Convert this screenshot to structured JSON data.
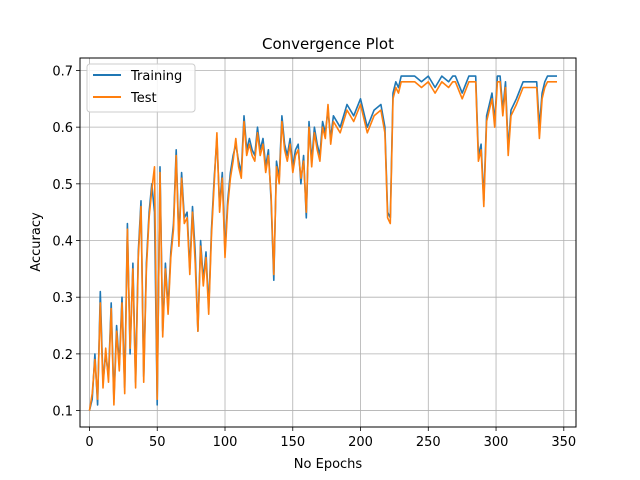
{
  "chart_data": {
    "type": "line",
    "title": "Convergence Plot",
    "xlabel": "No Epochs",
    "ylabel": "Accuracy",
    "xlim": [
      -7,
      359
    ],
    "ylim": [
      0.071,
      0.722
    ],
    "xticks": [
      0,
      50,
      100,
      150,
      200,
      250,
      300,
      350
    ],
    "yticks": [
      0.1,
      0.2,
      0.3,
      0.4,
      0.5,
      0.6,
      0.7
    ],
    "ytick_labels": [
      "0.1",
      "0.2",
      "0.3",
      "0.4",
      "0.5",
      "0.6",
      "0.7"
    ],
    "grid": true,
    "legend_position": "top-left",
    "series": [
      {
        "name": "Training",
        "color": "#1f77b4",
        "x": [
          0,
          2,
          4,
          6,
          8,
          10,
          12,
          14,
          16,
          18,
          20,
          22,
          24,
          26,
          28,
          30,
          32,
          34,
          36,
          38,
          40,
          42,
          44,
          46,
          48,
          50,
          52,
          54,
          56,
          58,
          60,
          62,
          64,
          66,
          68,
          70,
          72,
          74,
          76,
          78,
          80,
          82,
          84,
          86,
          88,
          90,
          92,
          94,
          96,
          98,
          100,
          102,
          104,
          106,
          108,
          110,
          112,
          114,
          116,
          118,
          120,
          122,
          124,
          126,
          128,
          130,
          132,
          134,
          136,
          138,
          140,
          142,
          144,
          146,
          148,
          150,
          152,
          154,
          156,
          158,
          160,
          162,
          164,
          166,
          168,
          170,
          172,
          174,
          176,
          178,
          180,
          185,
          190,
          195,
          200,
          205,
          210,
          215,
          218,
          220,
          222,
          224,
          226,
          228,
          230,
          235,
          240,
          245,
          250,
          255,
          260,
          265,
          268,
          270,
          275,
          280,
          285,
          287,
          289,
          291,
          293,
          295,
          297,
          299,
          301,
          303,
          305,
          307,
          309,
          311,
          315,
          320,
          325,
          330,
          332,
          334,
          336,
          338,
          340,
          345
        ],
        "values": [
          0.1,
          0.12,
          0.2,
          0.11,
          0.31,
          0.15,
          0.2,
          0.16,
          0.29,
          0.12,
          0.25,
          0.18,
          0.3,
          0.14,
          0.43,
          0.2,
          0.36,
          0.15,
          0.38,
          0.47,
          0.16,
          0.36,
          0.45,
          0.5,
          0.45,
          0.11,
          0.53,
          0.24,
          0.36,
          0.28,
          0.38,
          0.43,
          0.56,
          0.4,
          0.52,
          0.44,
          0.45,
          0.35,
          0.46,
          0.38,
          0.24,
          0.4,
          0.33,
          0.38,
          0.28,
          0.42,
          0.51,
          0.58,
          0.46,
          0.52,
          0.38,
          0.47,
          0.52,
          0.55,
          0.57,
          0.54,
          0.52,
          0.62,
          0.56,
          0.58,
          0.56,
          0.55,
          0.6,
          0.56,
          0.58,
          0.53,
          0.56,
          0.47,
          0.33,
          0.54,
          0.51,
          0.62,
          0.57,
          0.55,
          0.58,
          0.53,
          0.56,
          0.57,
          0.5,
          0.55,
          0.44,
          0.61,
          0.54,
          0.6,
          0.57,
          0.55,
          0.61,
          0.59,
          0.63,
          0.58,
          0.62,
          0.6,
          0.64,
          0.62,
          0.65,
          0.6,
          0.63,
          0.64,
          0.6,
          0.45,
          0.44,
          0.66,
          0.68,
          0.67,
          0.69,
          0.69,
          0.69,
          0.68,
          0.69,
          0.67,
          0.69,
          0.68,
          0.69,
          0.69,
          0.66,
          0.69,
          0.69,
          0.55,
          0.57,
          0.47,
          0.62,
          0.64,
          0.66,
          0.61,
          0.69,
          0.69,
          0.63,
          0.68,
          0.56,
          0.63,
          0.65,
          0.68,
          0.68,
          0.68,
          0.6,
          0.66,
          0.68,
          0.69,
          0.69,
          0.69
        ]
      },
      {
        "name": "Test",
        "color": "#ff7f0e",
        "x": [
          0,
          2,
          4,
          6,
          8,
          10,
          12,
          14,
          16,
          18,
          20,
          22,
          24,
          26,
          28,
          30,
          32,
          34,
          36,
          38,
          40,
          42,
          44,
          46,
          48,
          50,
          52,
          54,
          56,
          58,
          60,
          62,
          64,
          66,
          68,
          70,
          72,
          74,
          76,
          78,
          80,
          82,
          84,
          86,
          88,
          90,
          92,
          94,
          96,
          98,
          100,
          102,
          104,
          106,
          108,
          110,
          112,
          114,
          116,
          118,
          120,
          122,
          124,
          126,
          128,
          130,
          132,
          134,
          136,
          138,
          140,
          142,
          144,
          146,
          148,
          150,
          152,
          154,
          156,
          158,
          160,
          162,
          164,
          166,
          168,
          170,
          172,
          174,
          176,
          178,
          180,
          185,
          190,
          195,
          200,
          205,
          210,
          215,
          218,
          220,
          222,
          224,
          226,
          228,
          230,
          235,
          240,
          245,
          250,
          255,
          260,
          265,
          268,
          270,
          275,
          280,
          285,
          287,
          289,
          291,
          293,
          295,
          297,
          299,
          301,
          303,
          305,
          307,
          309,
          311,
          315,
          320,
          325,
          330,
          332,
          334,
          336,
          338,
          340,
          345
        ],
        "values": [
          0.1,
          0.13,
          0.19,
          0.12,
          0.29,
          0.14,
          0.21,
          0.15,
          0.28,
          0.11,
          0.24,
          0.17,
          0.29,
          0.13,
          0.42,
          0.21,
          0.35,
          0.14,
          0.37,
          0.46,
          0.15,
          0.35,
          0.44,
          0.49,
          0.53,
          0.12,
          0.52,
          0.23,
          0.35,
          0.27,
          0.37,
          0.42,
          0.55,
          0.39,
          0.51,
          0.43,
          0.44,
          0.34,
          0.45,
          0.36,
          0.24,
          0.39,
          0.32,
          0.37,
          0.27,
          0.41,
          0.5,
          0.59,
          0.45,
          0.51,
          0.37,
          0.46,
          0.51,
          0.54,
          0.58,
          0.53,
          0.51,
          0.61,
          0.55,
          0.57,
          0.55,
          0.54,
          0.59,
          0.55,
          0.57,
          0.52,
          0.55,
          0.48,
          0.34,
          0.53,
          0.5,
          0.61,
          0.56,
          0.54,
          0.57,
          0.52,
          0.55,
          0.56,
          0.51,
          0.54,
          0.45,
          0.6,
          0.53,
          0.59,
          0.56,
          0.54,
          0.6,
          0.58,
          0.64,
          0.57,
          0.61,
          0.59,
          0.63,
          0.61,
          0.64,
          0.59,
          0.62,
          0.63,
          0.59,
          0.44,
          0.43,
          0.65,
          0.67,
          0.66,
          0.68,
          0.68,
          0.68,
          0.67,
          0.68,
          0.66,
          0.68,
          0.67,
          0.68,
          0.68,
          0.65,
          0.68,
          0.68,
          0.54,
          0.56,
          0.46,
          0.61,
          0.63,
          0.65,
          0.6,
          0.68,
          0.68,
          0.62,
          0.67,
          0.55,
          0.62,
          0.64,
          0.67,
          0.67,
          0.67,
          0.58,
          0.65,
          0.67,
          0.68,
          0.68,
          0.68
        ]
      }
    ]
  }
}
